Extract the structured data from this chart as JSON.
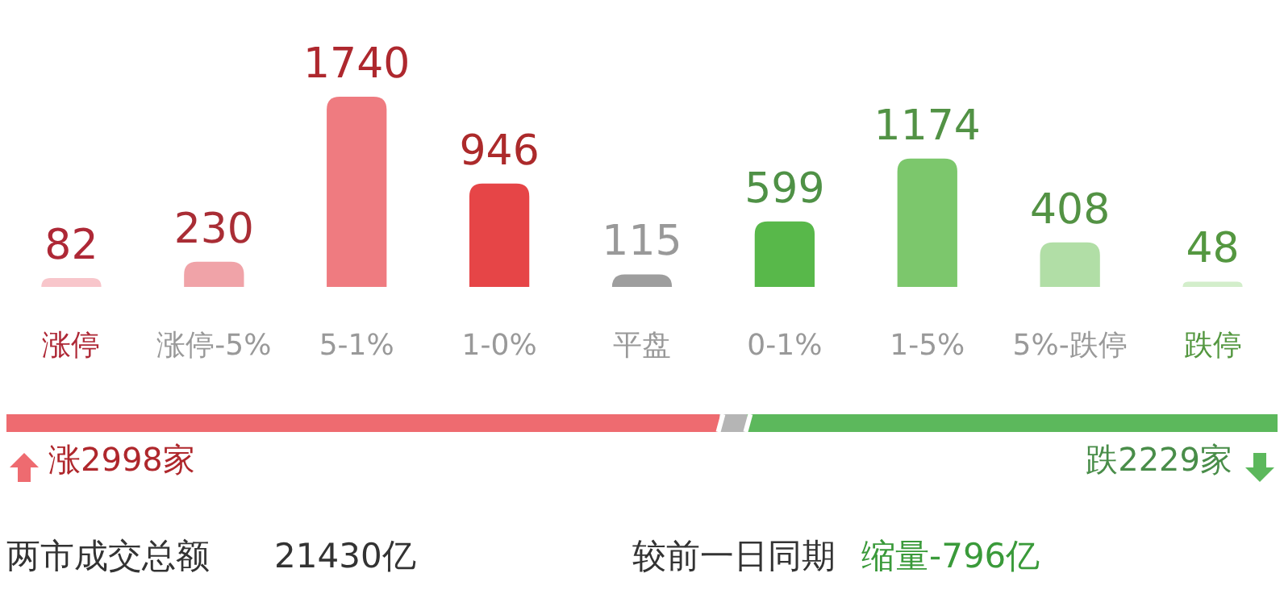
{
  "chart_data": [
    {
      "type": "bar",
      "categories": [
        "涨停",
        "涨停-5%",
        "5-1%",
        "1-0%",
        "平盘",
        "0-1%",
        "1-5%",
        "5%-跌停",
        "跌停"
      ],
      "values": [
        82,
        230,
        1740,
        946,
        115,
        599,
        1174,
        408,
        48
      ],
      "colors": [
        "#f8c6cb",
        "#f0a3a8",
        "#ef7b80",
        "#e64547",
        "#9e9e9e",
        "#58b84a",
        "#7cc76c",
        "#b1dea6",
        "#d3eecb"
      ],
      "data_labels": true
    },
    {
      "type": "bar",
      "orientation": "horizontal",
      "stacked": true,
      "categories": [
        null
      ],
      "series": [
        {
          "color": "#ee6b70",
          "values": [
            2998
          ],
          "value_labels": [
            "涨2998家"
          ]
        },
        {
          "color": "#b5b5b5",
          "values": [
            115
          ],
          "value_labels": [
            null
          ]
        },
        {
          "color": "#5cb85c",
          "values": [
            2229
          ],
          "value_labels": [
            "跌2229家"
          ]
        }
      ],
      "annotations": [
        "两市成交总额",
        "21430亿",
        "较前一日同期",
        "缩量-796亿"
      ]
    }
  ]
}
